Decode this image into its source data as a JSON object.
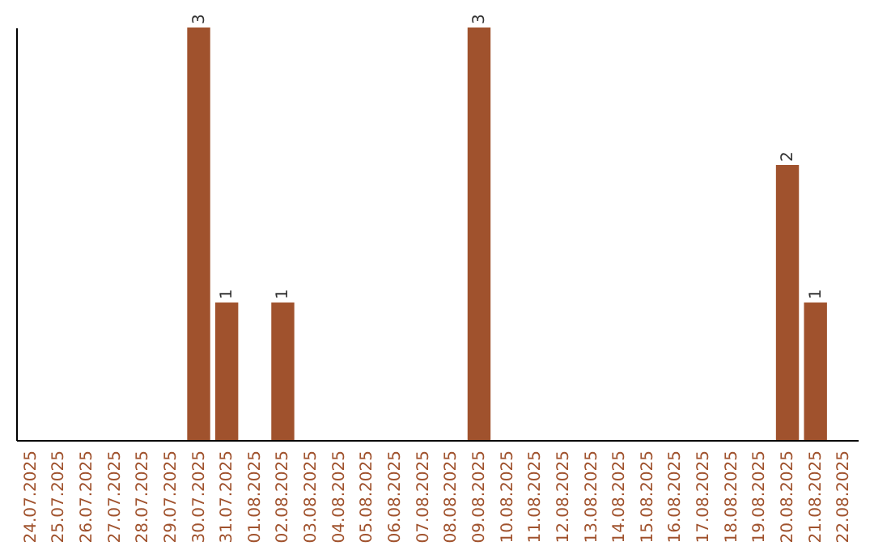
{
  "chart_data": {
    "type": "bar",
    "categories": [
      "24.07.2025",
      "25.07.2025",
      "26.07.2025",
      "27.07.2025",
      "28.07.2025",
      "29.07.2025",
      "30.07.2025",
      "31.07.2025",
      "01.08.2025",
      "02.08.2025",
      "03.08.2025",
      "04.08.2025",
      "05.08.2025",
      "06.08.2025",
      "07.08.2025",
      "08.08.2025",
      "09.08.2025",
      "10.08.2025",
      "11.08.2025",
      "12.08.2025",
      "13.08.2025",
      "14.08.2025",
      "15.08.2025",
      "16.08.2025",
      "17.08.2025",
      "18.08.2025",
      "19.08.2025",
      "20.08.2025",
      "21.08.2025",
      "22.08.2025"
    ],
    "values": [
      null,
      null,
      null,
      null,
      null,
      null,
      3,
      1,
      null,
      1,
      null,
      null,
      null,
      null,
      null,
      null,
      3,
      null,
      null,
      null,
      null,
      null,
      null,
      null,
      null,
      null,
      null,
      2,
      1,
      null
    ],
    "color": "#a0522d",
    "data_labels": true,
    "tick_labels": "x",
    "grid": false
  }
}
